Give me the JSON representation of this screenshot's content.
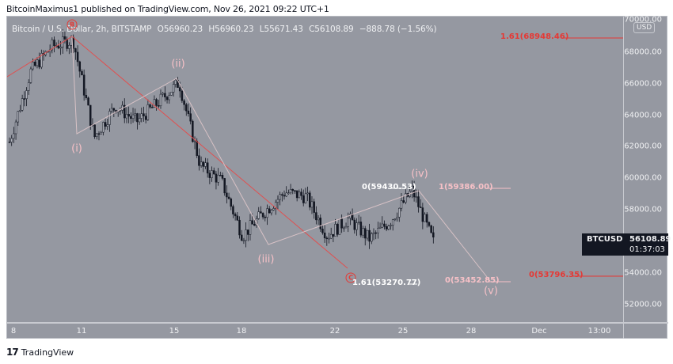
{
  "publisher_line": "BitcoinMaximus1 published on TradingView.com, Nov 26, 2021 09:22 UTC+1",
  "legend": {
    "symbol": "Bitcoin / U.S. Dollar, 2h, BITSTAMP",
    "open": "O56960.23",
    "high": "H56960.23",
    "low": "L55671.43",
    "close": "C56108.89",
    "change": "−888.78 (−1.56%)"
  },
  "price_axis": {
    "currency": "USD",
    "ticks": [
      "70000.00",
      "68000.00",
      "66000.00",
      "64000.00",
      "62000.00",
      "60000.00",
      "58000.00",
      "54000.00",
      "52000.00"
    ]
  },
  "time_axis": {
    "ticks": [
      "8",
      "11",
      "15",
      "18",
      "22",
      "25",
      "28",
      "Dec",
      "13:00"
    ]
  },
  "last_price": {
    "symbol": "BTCUSD",
    "price": "56108.89",
    "countdown": "01:37:03"
  },
  "annotations": {
    "waves": [
      "(i)",
      "(ii)",
      "(iii)",
      "(iv)",
      "(v)"
    ],
    "circled": [
      "B",
      "C"
    ],
    "fib_levels": [
      {
        "label": "1.61(68948.46)",
        "color": "#e53935"
      },
      {
        "label": "0(59430.53)",
        "color": "#ffffff"
      },
      {
        "label": "1(59386.00)",
        "color": "#f7c1c7"
      },
      {
        "label": "1.61(53270.77)",
        "color": "#ffffff"
      },
      {
        "label": "0(53452.85)",
        "color": "#f7c1c7"
      },
      {
        "label": "0(53796.35)",
        "color": "#e53935"
      }
    ]
  },
  "footer": {
    "brand": "TradingView",
    "logo": "17"
  },
  "colors": {
    "background": "#9598a1",
    "text": "#f0f1f3",
    "red": "#e53935",
    "pink": "#f7c1c7",
    "candle": "#131722"
  },
  "chart_data": {
    "type": "candlestick",
    "title": "Bitcoin / U.S. Dollar, 2h, BITSTAMP",
    "xlabel": "",
    "ylabel": "USD",
    "ylim": [
      51000,
      70500
    ],
    "x_ticks": [
      "8",
      "11",
      "15",
      "18",
      "22",
      "25",
      "28",
      "Dec",
      "13:00"
    ],
    "y_ticks": [
      52000,
      54000,
      56000,
      58000,
      60000,
      62000,
      64000,
      66000,
      68000,
      70000
    ],
    "ohlc_last": {
      "open": 56960.23,
      "high": 56960.23,
      "low": 55671.43,
      "close": 56108.89,
      "change": -888.78,
      "change_pct": -1.56
    },
    "approx_path": [
      {
        "x": "Nov 8",
        "price": 62500
      },
      {
        "x": "Nov 9",
        "price": 67000
      },
      {
        "x": "Nov 10",
        "price": 68600
      },
      {
        "x": "Nov 10",
        "price": 69000
      },
      {
        "x": "Nov 10",
        "price": 62800
      },
      {
        "x": "Nov 12",
        "price": 64800
      },
      {
        "x": "Nov 13",
        "price": 63800
      },
      {
        "x": "Nov 14",
        "price": 65000
      },
      {
        "x": "Nov 15",
        "price": 66300
      },
      {
        "x": "Nov 16",
        "price": 61000
      },
      {
        "x": "Nov 17",
        "price": 60000
      },
      {
        "x": "Nov 18",
        "price": 56500
      },
      {
        "x": "Nov 19",
        "price": 58000
      },
      {
        "x": "Nov 20",
        "price": 59300
      },
      {
        "x": "Nov 21",
        "price": 59000
      },
      {
        "x": "Nov 22",
        "price": 56500
      },
      {
        "x": "Nov 23",
        "price": 57600
      },
      {
        "x": "Nov 24",
        "price": 56300
      },
      {
        "x": "Nov 25",
        "price": 57500
      },
      {
        "x": "Nov 25",
        "price": 59430
      },
      {
        "x": "Nov 26",
        "price": 56108
      }
    ],
    "wave_points": [
      {
        "label": "(i)",
        "price": 62800
      },
      {
        "label": "(ii)",
        "price": 66300
      },
      {
        "label": "(iii)",
        "price": 55700
      },
      {
        "label": "(iv)",
        "price": 59430
      },
      {
        "label": "(v)",
        "price": 53452
      }
    ],
    "fib_levels": [
      68948.46,
      59430.53,
      59386.0,
      53270.77,
      53452.85,
      53796.35
    ]
  }
}
